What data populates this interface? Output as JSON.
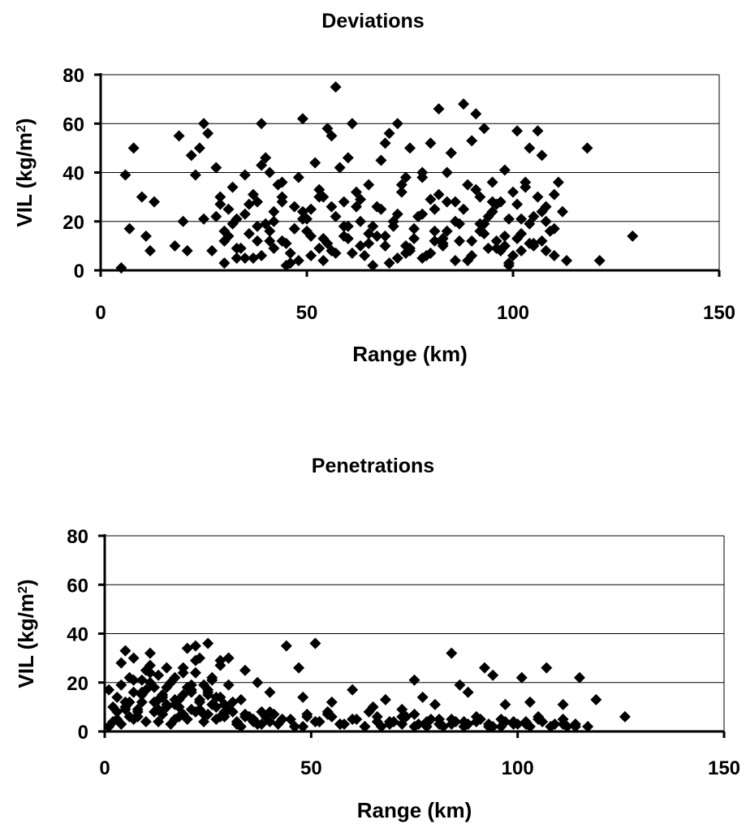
{
  "chart_data": [
    {
      "type": "scatter",
      "title": "Deviations",
      "xlabel": "Range (km)",
      "ylabel": "VIL (kg/m",
      "ylabel_sup": "2",
      "ylabel_end": ")",
      "xlim": [
        0,
        150
      ],
      "ylim": [
        0,
        80
      ],
      "xticks": [
        "0",
        "50",
        "100",
        "150"
      ],
      "yticks": [
        "0",
        "20",
        "40",
        "60",
        "80"
      ],
      "grid": "horizontal",
      "marker": "diamond",
      "color": "#000000",
      "x": [
        5,
        6,
        7,
        8,
        10,
        11,
        12,
        13,
        18,
        19,
        20,
        21,
        22,
        23,
        24,
        25,
        25,
        26,
        28,
        29,
        30,
        31,
        33,
        35,
        38,
        39,
        40,
        41,
        42,
        44,
        45,
        47,
        49,
        50,
        52,
        54,
        55,
        56,
        57,
        59,
        60,
        61,
        63,
        65,
        67,
        69,
        70,
        72,
        73,
        74,
        75,
        77,
        78,
        80,
        81,
        82,
        83,
        84,
        85,
        86,
        88,
        90,
        91,
        92,
        93,
        94,
        95,
        96,
        97,
        98,
        99,
        100,
        101,
        102,
        103,
        104,
        105,
        106,
        107,
        108,
        109,
        110,
        111,
        112,
        113,
        118,
        121,
        129,
        28,
        30,
        32,
        34,
        36,
        37,
        39,
        41,
        43,
        44,
        46,
        48,
        49,
        51,
        53,
        54,
        56,
        58,
        60,
        62,
        64,
        66,
        68,
        70,
        71,
        73,
        75,
        76,
        78,
        79,
        81,
        83,
        85,
        87,
        89,
        91,
        93,
        95,
        97,
        99,
        101,
        103,
        105,
        107,
        27,
        29,
        31,
        33,
        35,
        37,
        38,
        40,
        42,
        44,
        46,
        47,
        49,
        51,
        53,
        55,
        57,
        59,
        61,
        63,
        65,
        67,
        69,
        71,
        72,
        74,
        76,
        78,
        80,
        82,
        84,
        86,
        88,
        90,
        92,
        94,
        96,
        98,
        100,
        102,
        104,
        106,
        108,
        110,
        30,
        33,
        36,
        39,
        42,
        45,
        48,
        51,
        54,
        57,
        60,
        63,
        66,
        69,
        72,
        75,
        78,
        81,
        84,
        87,
        90,
        93,
        96,
        99,
        102,
        105,
        108,
        32,
        35,
        38,
        41,
        44,
        47,
        50,
        53,
        56,
        59,
        62,
        65,
        68,
        71,
        74,
        77,
        80,
        83,
        86,
        89,
        92,
        95,
        98,
        101,
        104,
        107,
        110
      ],
      "y": [
        1,
        39,
        17,
        50,
        30,
        14,
        8,
        28,
        10,
        55,
        20,
        8,
        47,
        39,
        50,
        21,
        60,
        56,
        42,
        30,
        12,
        25,
        5,
        39,
        18,
        60,
        46,
        40,
        24,
        36,
        2,
        26,
        62,
        16,
        44,
        30,
        58,
        55,
        75,
        28,
        46,
        60,
        20,
        35,
        14,
        52,
        56,
        60,
        35,
        10,
        50,
        22,
        38,
        52,
        12,
        66,
        10,
        40,
        48,
        28,
        68,
        53,
        64,
        30,
        58,
        22,
        36,
        12,
        28,
        41,
        2,
        32,
        57,
        8,
        34,
        50,
        22,
        57,
        47,
        20,
        16,
        6,
        36,
        24,
        4,
        50,
        4,
        14,
        22,
        16,
        34,
        9,
        27,
        5,
        43,
        16,
        35,
        12,
        7,
        38,
        21,
        14,
        30,
        4,
        8,
        42,
        13,
        26,
        6,
        18,
        45,
        3,
        20,
        32,
        9,
        17,
        40,
        6,
        25,
        11,
        48,
        19,
        4,
        33,
        15,
        28,
        8,
        21,
        13,
        36,
        10,
        24,
        8,
        27,
        14,
        21,
        5,
        31,
        12,
        19,
        9,
        28,
        3,
        17,
        24,
        6,
        33,
        11,
        22,
        18,
        7,
        29,
        15,
        26,
        10,
        20,
        5,
        38,
        13,
        23,
        7,
        31,
        16,
        4,
        25,
        12,
        19,
        9,
        27,
        14,
        6,
        21,
        11,
        30,
        8,
        17,
        3,
        9,
        15,
        6,
        20,
        11,
        4,
        25,
        13,
        7,
        18,
        10,
        2,
        14,
        23,
        8,
        5,
        16,
        28,
        12,
        6,
        19,
        9,
        3,
        15,
        11,
        26,
        19,
        23,
        28,
        12,
        30,
        17,
        21,
        9,
        26,
        14,
        32,
        11,
        25,
        18,
        7,
        22,
        29,
        13,
        20,
        35,
        16,
        24,
        10,
        27,
        19,
        12,
        31
      ]
    },
    {
      "type": "scatter",
      "title": "Penetrations",
      "xlabel": "Range (km)",
      "ylabel": "VIL (kg/m",
      "ylabel_sup": "2",
      "ylabel_end": ")",
      "xlim": [
        0,
        150
      ],
      "ylim": [
        0,
        80
      ],
      "xticks": [
        "0",
        "50",
        "100",
        "150"
      ],
      "yticks": [
        "0",
        "20",
        "40",
        "60",
        "80"
      ],
      "grid": "horizontal",
      "marker": "diamond",
      "color": "#000000",
      "x": [
        1,
        2,
        3,
        4,
        5,
        6,
        7,
        8,
        9,
        10,
        11,
        12,
        13,
        14,
        15,
        16,
        17,
        18,
        19,
        20,
        21,
        22,
        23,
        24,
        25,
        26,
        27,
        28,
        29,
        30,
        2,
        3,
        4,
        5,
        6,
        7,
        8,
        9,
        10,
        11,
        12,
        13,
        14,
        15,
        16,
        17,
        18,
        19,
        20,
        21,
        22,
        23,
        24,
        25,
        26,
        27,
        28,
        29,
        30,
        31,
        1,
        3,
        5,
        7,
        9,
        11,
        13,
        15,
        17,
        19,
        21,
        23,
        25,
        27,
        29,
        31,
        33,
        35,
        4,
        6,
        8,
        10,
        12,
        14,
        16,
        18,
        20,
        22,
        24,
        26,
        28,
        30,
        32,
        34,
        36,
        38,
        40,
        5,
        7,
        9,
        11,
        13,
        15,
        17,
        19,
        21,
        23,
        25,
        27,
        29,
        22,
        23,
        25,
        28,
        30,
        34,
        37,
        40,
        44,
        47,
        48,
        51,
        55,
        60,
        65,
        68,
        72,
        75,
        77,
        80,
        84,
        86,
        88,
        92,
        94,
        97,
        101,
        103,
        107,
        111,
        115,
        119,
        126,
        32,
        35,
        38,
        41,
        43,
        46,
        49,
        52,
        54,
        57,
        60,
        63,
        66,
        69,
        72,
        75,
        78,
        81,
        84,
        87,
        90,
        93,
        96,
        99,
        102,
        105,
        108,
        111,
        114,
        117,
        33,
        36,
        39,
        42,
        45,
        48,
        51,
        54,
        57,
        60,
        63,
        66,
        69,
        72,
        75,
        78,
        81,
        84,
        87,
        90,
        93,
        96,
        99,
        102,
        105,
        108,
        111,
        114,
        34,
        37,
        40,
        43,
        46,
        49,
        52,
        55,
        58,
        61,
        64,
        67,
        70,
        73,
        76,
        79,
        82,
        85,
        88,
        91,
        94,
        97,
        100,
        103,
        106,
        109,
        112
      ],
      "y": [
        17,
        10,
        5,
        28,
        33,
        12,
        21,
        8,
        15,
        25,
        32,
        18,
        9,
        14,
        26,
        20,
        11,
        6,
        24,
        34,
        16,
        29,
        13,
        19,
        7,
        22,
        10,
        27,
        8,
        30,
        4,
        14,
        19,
        9,
        22,
        30,
        6,
        12,
        17,
        27,
        8,
        23,
        15,
        11,
        20,
        5,
        13,
        26,
        18,
        9,
        24,
        12,
        7,
        16,
        21,
        10,
        14,
        6,
        19,
        12,
        2,
        8,
        12,
        5,
        16,
        20,
        4,
        10,
        13,
        7,
        17,
        9,
        15,
        5,
        11,
        8,
        13,
        6,
        3,
        6,
        9,
        4,
        12,
        7,
        3,
        10,
        5,
        8,
        4,
        11,
        6,
        9,
        3,
        7,
        5,
        8,
        4,
        10,
        16,
        21,
        24,
        13,
        18,
        22,
        15,
        19,
        12,
        17,
        14,
        11,
        35,
        30,
        36,
        29,
        30,
        25,
        20,
        16,
        35,
        26,
        14,
        36,
        12,
        17,
        10,
        13,
        9,
        21,
        14,
        11,
        32,
        19,
        16,
        26,
        23,
        11,
        22,
        12,
        26,
        11,
        22,
        13,
        6,
        4,
        6,
        3,
        7,
        5,
        2,
        6,
        4,
        8,
        3,
        5,
        2,
        6,
        4,
        3,
        7,
        2,
        5,
        3,
        4,
        6,
        2,
        5,
        3,
        4,
        6,
        2,
        5,
        3,
        2,
        2,
        4,
        6,
        3,
        5,
        2,
        4,
        7,
        3,
        5,
        2,
        4,
        3,
        6,
        2,
        4,
        3,
        5,
        2,
        4,
        3,
        2,
        4,
        3,
        5,
        2,
        3,
        2,
        6,
        3,
        8,
        5,
        2,
        7,
        4,
        6,
        3,
        5,
        8,
        2,
        4,
        6,
        3,
        5,
        2,
        4,
        3,
        5,
        2,
        4,
        3,
        2,
        4,
        3,
        2
      ]
    }
  ]
}
